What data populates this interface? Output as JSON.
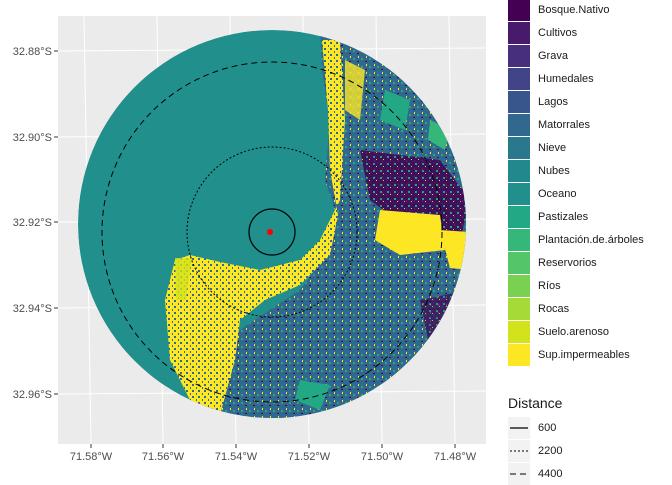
{
  "map": {
    "background": "#ebebeb",
    "ocean_color": "#21908c",
    "y_ticks": [
      "32.88°S",
      "32.90°S",
      "32.92°S",
      "32.94°S",
      "32.96°S"
    ],
    "x_ticks": [
      "71.58°W",
      "71.56°W",
      "71.54°W",
      "71.52°W",
      "71.50°W",
      "71.48°W"
    ],
    "center_marker_color": "#ff0000"
  },
  "legend": {
    "items": [
      {
        "label": "Bosque.Nativo",
        "color": "#440154"
      },
      {
        "label": "Cultivos",
        "color": "#481a6c"
      },
      {
        "label": "Grava",
        "color": "#472f7d"
      },
      {
        "label": "Humedales",
        "color": "#414487"
      },
      {
        "label": "Lagos",
        "color": "#39568c"
      },
      {
        "label": "Matorrales",
        "color": "#31688e"
      },
      {
        "label": "Nieve",
        "color": "#2a788e"
      },
      {
        "label": "Nubes",
        "color": "#23888e"
      },
      {
        "label": "Oceano",
        "color": "#21908c"
      },
      {
        "label": "Pastizales",
        "color": "#22a884"
      },
      {
        "label": "Plantación.de.árboles",
        "color": "#35b779"
      },
      {
        "label": "Reservorios",
        "color": "#54c568"
      },
      {
        "label": "Ríos",
        "color": "#7ad151"
      },
      {
        "label": "Rocas",
        "color": "#a5db36"
      },
      {
        "label": "Suelo.arenoso",
        "color": "#d2e21b"
      },
      {
        "label": "Sup.impermeables",
        "color": "#fde725"
      }
    ]
  },
  "distance_legend": {
    "title": "Distance",
    "items": [
      {
        "label": "600",
        "dash": "solid"
      },
      {
        "label": "2200",
        "dash": "dotted"
      },
      {
        "label": "4400",
        "dash": "dashed"
      }
    ]
  }
}
